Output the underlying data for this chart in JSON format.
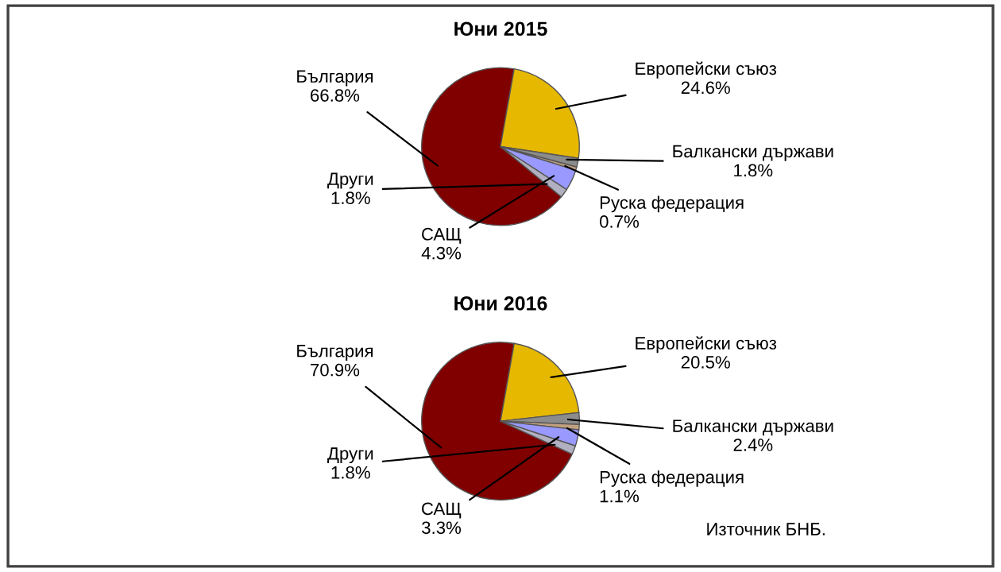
{
  "chart_data": [
    {
      "type": "pie",
      "title": "Юни 2015",
      "categories": [
        "България",
        "Европейски съюз",
        "Балкански държави",
        "Руска федерация",
        "САЩ",
        "Други"
      ],
      "values": [
        66.8,
        24.6,
        1.8,
        0.7,
        4.3,
        1.8
      ],
      "value_labels": [
        "66.8%",
        "24.6%",
        "1.8%",
        "0.7%",
        "4.3%",
        "1.8%"
      ],
      "colors": [
        "#800000",
        "#e6b800",
        "#8c8c8c",
        "#c0a080",
        "#9999ff",
        "#b0b0c0"
      ]
    },
    {
      "type": "pie",
      "title": "Юни 2016",
      "categories": [
        "България",
        "Европейски съюз",
        "Балкански държави",
        "Руска федерация",
        "САЩ",
        "Други"
      ],
      "values": [
        70.9,
        20.5,
        2.4,
        1.1,
        3.3,
        1.8
      ],
      "value_labels": [
        "70.9%",
        "20.5%",
        "2.4%",
        "1.1%",
        "3.3%",
        "1.8%"
      ],
      "colors": [
        "#800000",
        "#e6b800",
        "#8c8c8c",
        "#c0a080",
        "#9999ff",
        "#b0b0c0"
      ],
      "annotations": [
        "Източник БНБ."
      ]
    }
  ]
}
